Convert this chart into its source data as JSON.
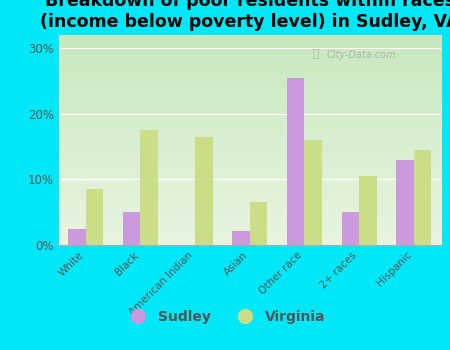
{
  "title": "Breakdown of poor residents within races\n(income below poverty level) in Sudley, VA",
  "categories": [
    "White",
    "Black",
    "American Indian",
    "Asian",
    "Other race",
    "2+ races",
    "Hispanic"
  ],
  "sudley_values": [
    2.5,
    5.0,
    0.0,
    2.2,
    25.5,
    5.0,
    13.0
  ],
  "virginia_values": [
    8.5,
    17.5,
    16.5,
    6.5,
    16.0,
    10.5,
    14.5
  ],
  "sudley_color": "#cc99dd",
  "virginia_color": "#ccdd88",
  "background_top": "#c8e8c0",
  "background_bottom": "#e8f5e0",
  "outer_background": "#00e8f8",
  "ylim": [
    0,
    32
  ],
  "yticks": [
    0,
    10,
    20,
    30
  ],
  "yticklabels": [
    "0%",
    "10%",
    "20%",
    "30%"
  ],
  "bar_width": 0.32,
  "title_fontsize": 12.5,
  "watermark": "City-Data.com",
  "legend_fontsize": 10
}
